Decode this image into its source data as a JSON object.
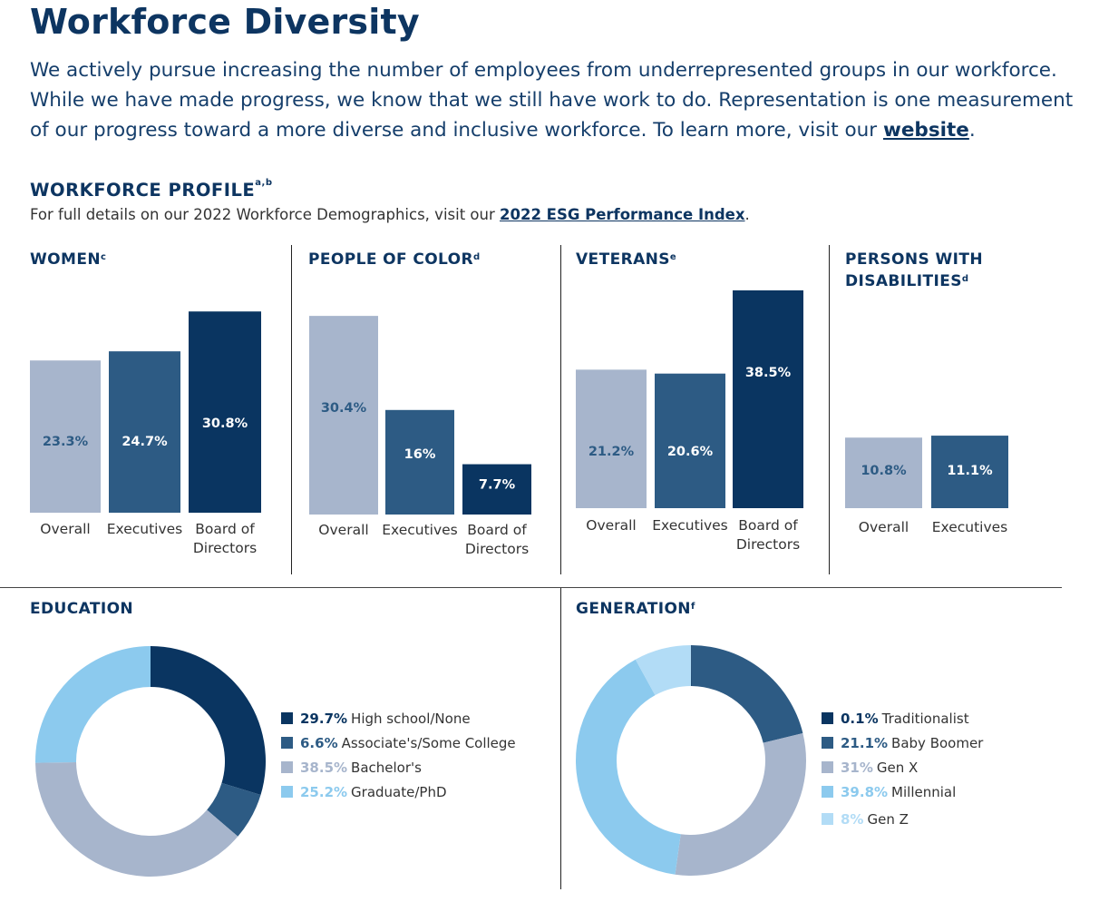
{
  "page": {
    "title": "Workforce Diversity",
    "intro_text": "We actively pursue increasing the number of employees from underrepresented groups in our workforce. While we have made progress, we know that we still have work to do. Representation is one measurement of our progress toward a more diverse and inclusive workforce. To learn more, visit our ",
    "intro_link": "website",
    "intro_end": ".",
    "profile_title": "WORKFORCE PROFILE",
    "profile_sup": "a,b",
    "profile_sub": "For full details on our 2022 Workforce Demographics, visit our ",
    "profile_link": "2022 ESG Performance Index",
    "profile_end": "."
  },
  "colors": {
    "light": "#a7b5cc",
    "mid": "#2d5b84",
    "dark": "#0a3561",
    "sky": "#8ccaee",
    "pale": "#b2dcf6"
  },
  "chart_data": [
    {
      "type": "bar",
      "title": "WOMEN",
      "sup": "c",
      "categories": [
        "Overall",
        "Executives",
        "Board of Directors"
      ],
      "values": [
        23.3,
        24.7,
        30.8
      ],
      "labels": [
        "23.3%",
        "24.7%",
        "30.8%"
      ]
    },
    {
      "type": "bar",
      "title": "PEOPLE OF COLOR",
      "sup": "d",
      "categories": [
        "Overall",
        "Executives",
        "Board of Directors"
      ],
      "values": [
        30.4,
        16,
        7.7
      ],
      "labels": [
        "30.4%",
        "16%",
        "7.7%"
      ]
    },
    {
      "type": "bar",
      "title": "VETERANS",
      "sup": "e",
      "categories": [
        "Overall",
        "Executives",
        "Board of Directors"
      ],
      "values": [
        21.2,
        20.6,
        38.5
      ],
      "labels": [
        "21.2%",
        "20.6%",
        "38.5%"
      ]
    },
    {
      "type": "bar",
      "title": "PERSONS WITH DISABILITIES",
      "sup": "d",
      "categories": [
        "Overall",
        "Executives"
      ],
      "values": [
        10.8,
        11.1
      ],
      "labels": [
        "10.8%",
        "11.1%"
      ]
    },
    {
      "type": "pie",
      "title": "EDUCATION",
      "sup": "",
      "values": [
        29.7,
        6.6,
        38.5,
        25.2
      ],
      "labels": [
        "29.7%",
        "6.6%",
        "38.5%",
        "25.2%"
      ],
      "categories": [
        "High school/None",
        "Associate's/Some College",
        "Bachelor's",
        "Graduate/PhD"
      ]
    },
    {
      "type": "pie",
      "title": "GENERATION",
      "sup": "f",
      "values": [
        0.1,
        21.1,
        31,
        39.8,
        8
      ],
      "labels": [
        "0.1%",
        "21.1%",
        "31%",
        "39.8%",
        "8%"
      ],
      "categories": [
        "Traditionalist",
        "Baby Boomer",
        "Gen X",
        "Millennial",
        "Gen Z"
      ]
    }
  ]
}
